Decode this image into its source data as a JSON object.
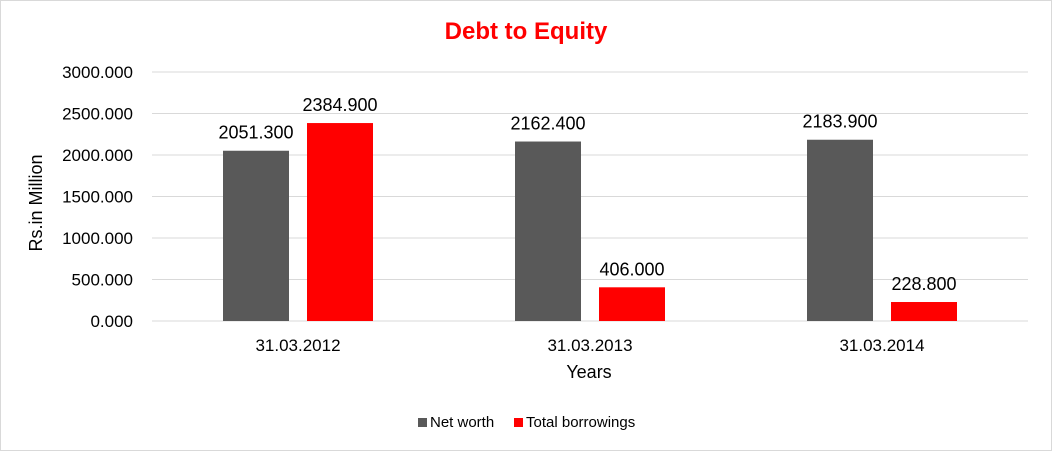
{
  "chart_data": {
    "type": "bar",
    "title": "Debt to Equity",
    "xlabel": "Years",
    "ylabel": "Rs.in Million",
    "categories": [
      "31.03.2012",
      "31.03.2013",
      "31.03.2014"
    ],
    "series": [
      {
        "name": "Net worth",
        "color": "#595959",
        "values": [
          2051.3,
          2162.4,
          2183.9
        ],
        "labels": [
          "2051.300",
          "2162.400",
          "2183.900"
        ]
      },
      {
        "name": "Total borrowings",
        "color": "#ff0000",
        "values": [
          2384.9,
          406.0,
          228.8
        ],
        "labels": [
          "2384.900",
          "406.000",
          "228.800"
        ]
      }
    ],
    "ylim": [
      0,
      3000
    ],
    "yticks": [
      0,
      500,
      1000,
      1500,
      2000,
      2500,
      3000
    ],
    "ytick_labels": [
      "0.000",
      "500.000",
      "1000.000",
      "1500.000",
      "2000.000",
      "2500.000",
      "3000.000"
    ],
    "grid": true,
    "legend_position": "bottom",
    "title_color": "#ff0000",
    "grid_color": "#d9d9d9"
  }
}
